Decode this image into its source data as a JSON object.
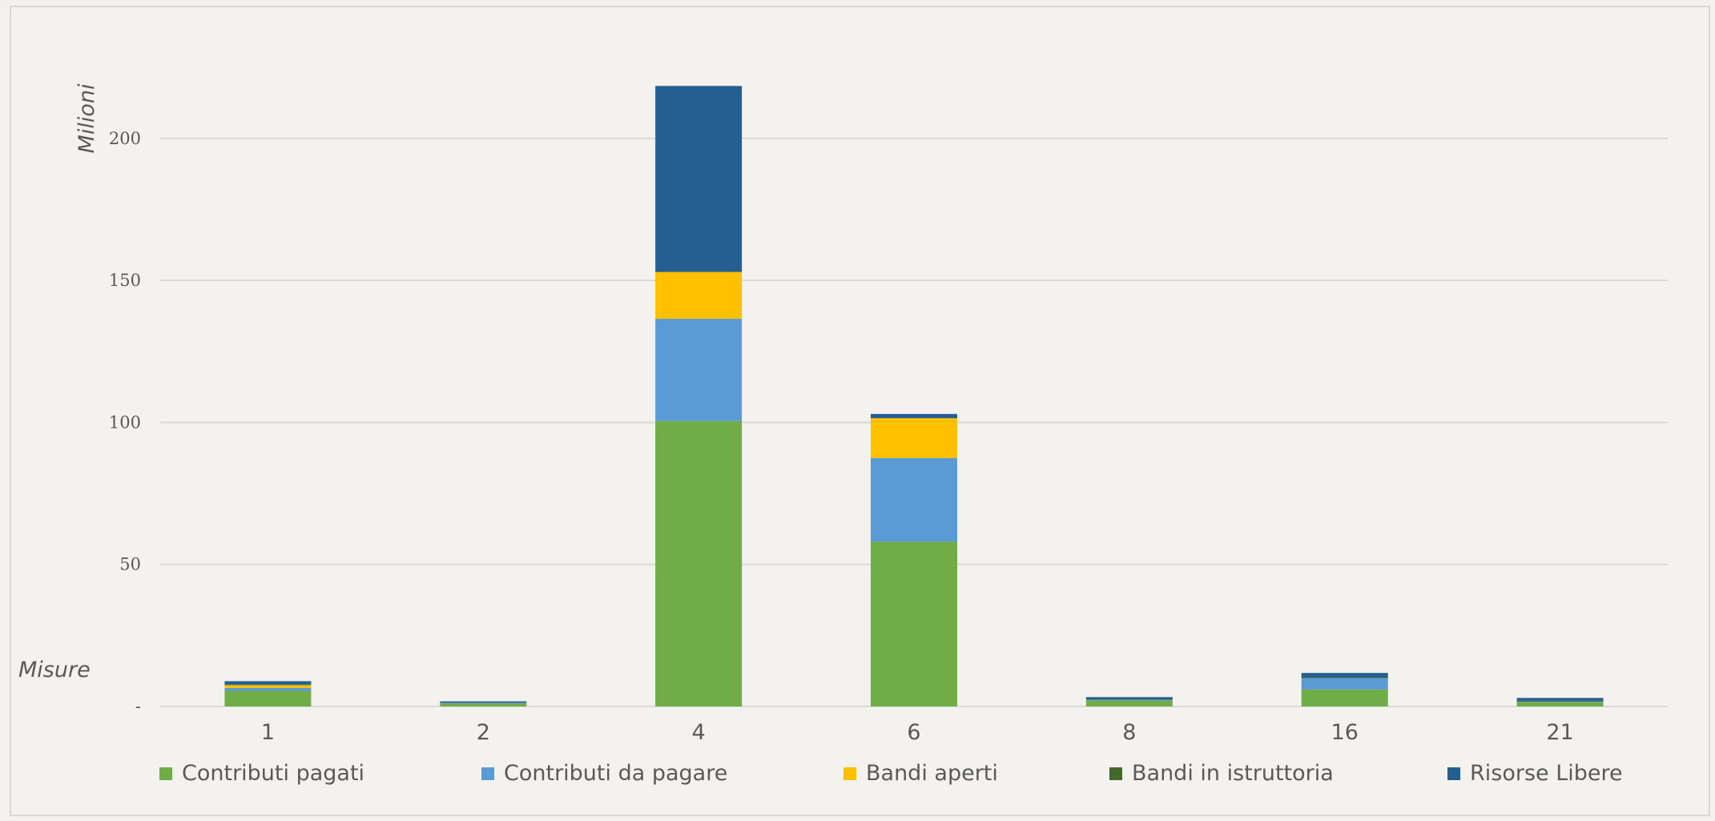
{
  "chart_data": {
    "type": "bar",
    "stacked": true,
    "ylabel": "Milioni",
    "xlabel": "Misure",
    "ylim": [
      0,
      220
    ],
    "yticks": [
      0,
      50,
      100,
      150,
      200
    ],
    "ytick_labels": [
      "-",
      "50",
      "100",
      "150",
      "200"
    ],
    "grid": true,
    "legend_position": "bottom",
    "categories": [
      "1",
      "2",
      "4",
      "6",
      "8",
      "16",
      "21"
    ],
    "series": [
      {
        "name": "Contributi pagati",
        "color": "#70ad47",
        "values": [
          5.5,
          1.0,
          100.5,
          58.0,
          2.0,
          6.0,
          1.5
        ]
      },
      {
        "name": "Contributi  da pagare",
        "color": "#5b9bd5",
        "values": [
          1.0,
          0.3,
          36.0,
          29.5,
          0.3,
          4.0,
          0.2
        ]
      },
      {
        "name": "Bandi aperti",
        "color": "#ffc000",
        "values": [
          1.0,
          0.0,
          16.5,
          14.0,
          0.0,
          0.0,
          0.0
        ]
      },
      {
        "name": "Bandi in istruttoria",
        "color": "#43682b",
        "values": [
          0.2,
          0.1,
          0.0,
          0.0,
          0.2,
          0.3,
          0.3
        ]
      },
      {
        "name": "Risorse Libere",
        "color": "#255e91",
        "values": [
          1.2,
          0.4,
          65.5,
          1.5,
          0.8,
          1.5,
          1.0
        ]
      }
    ]
  }
}
